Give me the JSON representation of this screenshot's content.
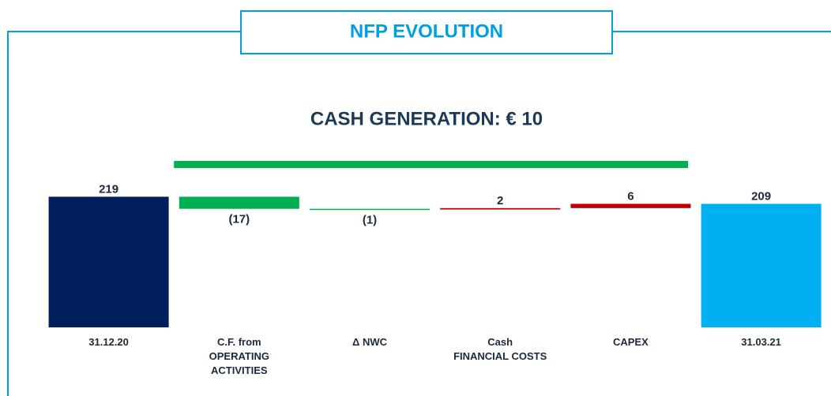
{
  "header": {
    "title": "NFP EVOLUTION"
  },
  "chart_data": {
    "type": "waterfall",
    "title": "CASH GENERATION: € 10",
    "categories": [
      "31.12.20",
      "C.F. from\nOPERATING\nACTIVITIES",
      "Δ NWC",
      "Cash\nFINANCIAL COSTS",
      "CAPEX",
      "31.03.21"
    ],
    "values": [
      219,
      -17,
      -1,
      2,
      6,
      209
    ],
    "value_labels": [
      "219",
      "(17)",
      "(1)",
      "2",
      "6",
      "209"
    ],
    "totals": [
      true,
      false,
      false,
      false,
      false,
      true
    ],
    "colors": [
      "#001f5b",
      "#00b050",
      "#00b050",
      "#c00000",
      "#c00000",
      "#00b0f0"
    ],
    "bracket_color": "#00b050",
    "ylim": [
      35,
      225
    ]
  }
}
